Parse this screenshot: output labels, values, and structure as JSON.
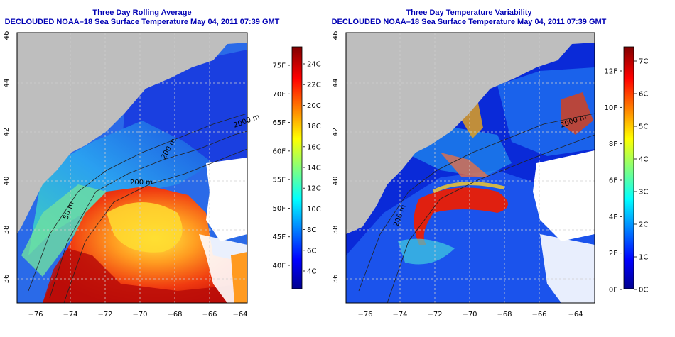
{
  "left_panel": {
    "title": "Three Day Rolling Average",
    "subtitle": "DECLOUDED NOAA–18 Sea Surface Temperature May 04, 2011 07:39 GMT",
    "x_ticks": [
      "−76",
      "−74",
      "−72",
      "−70",
      "−68",
      "−66",
      "−64"
    ],
    "y_ticks": [
      "36",
      "38",
      "40",
      "42",
      "44",
      "46"
    ],
    "isobath_labels": [
      "2000 m",
      "200 m",
      "200 m",
      "50 m"
    ],
    "colorbar": {
      "celsius": [
        "24C",
        "22C",
        "20C",
        "18C",
        "16C",
        "14C",
        "12C",
        "10C",
        "8C",
        "6C",
        "4C"
      ],
      "fahrenheit": [
        "75F",
        "70F",
        "65F",
        "60F",
        "55F",
        "50F",
        "45F",
        "40F"
      ]
    }
  },
  "right_panel": {
    "title": "Three Day Temperature Variability",
    "subtitle": "DECLOUDED NOAA–18 Sea Surface Temperature May 04, 2011 07:39 GMT",
    "x_ticks": [
      "−76",
      "−74",
      "−72",
      "−70",
      "−68",
      "−66",
      "−64"
    ],
    "y_ticks": [
      "36",
      "38",
      "40",
      "42",
      "44",
      "46"
    ],
    "isobath_labels": [
      "2000 m",
      "200 m"
    ],
    "colorbar": {
      "celsius": [
        "7C",
        "6C",
        "5C",
        "4C",
        "3C",
        "2C",
        "1C",
        "0C"
      ],
      "fahrenheit": [
        "12F",
        "10F",
        "8F",
        "6F",
        "4F",
        "2F",
        "0F"
      ]
    }
  },
  "colors": {
    "title": "#0000b4",
    "land": "#bebebe",
    "cloud_gap": "#ffffff",
    "scale_low": "#00008f",
    "scale_high": "#800000"
  }
}
